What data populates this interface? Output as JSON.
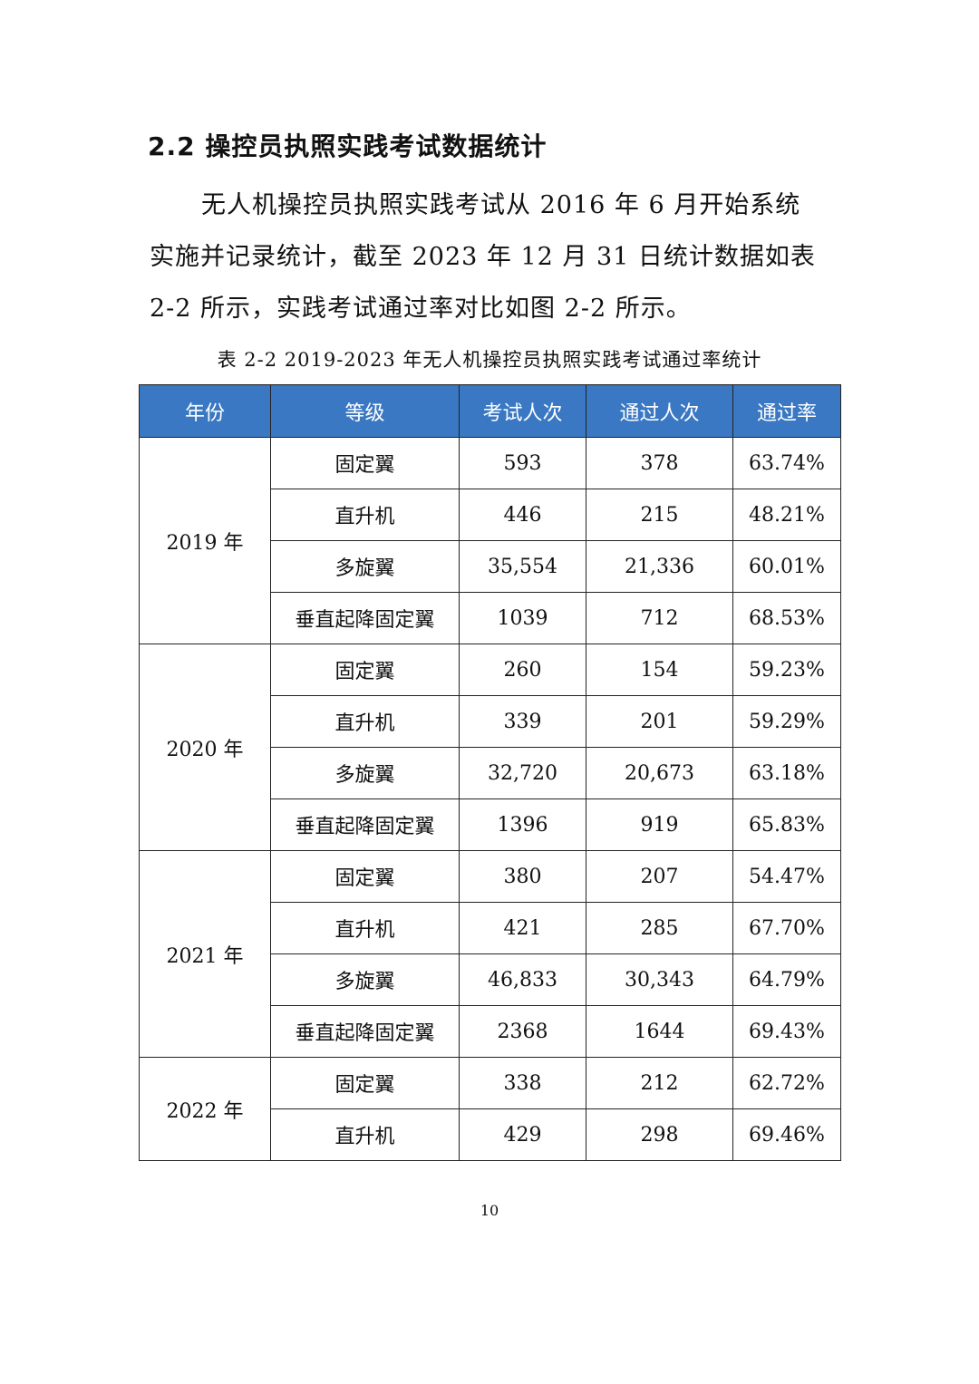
{
  "heading": "2.2 操控员执照实践考试数据统计",
  "paragraph": "无人机操控员执照实践考试从 2016 年 6 月开始系统实施并记录统计，截至 2023 年 12 月 31 日统计数据如表 2-2 所示，实践考试通过率对比如图 2-2 所示。",
  "table": {
    "caption": "表 2-2 2019-2023 年无人机操控员执照实践考试通过率统计",
    "header": [
      "年份",
      "等级",
      "考试人次",
      "通过人次",
      "通过率"
    ],
    "groups": [
      {
        "year": "2019 年",
        "rows": [
          [
            "固定翼",
            "593",
            "378",
            "63.74%"
          ],
          [
            "直升机",
            "446",
            "215",
            "48.21%"
          ],
          [
            "多旋翼",
            "35,554",
            "21,336",
            "60.01%"
          ],
          [
            "垂直起降固定翼",
            "1039",
            "712",
            "68.53%"
          ]
        ]
      },
      {
        "year": "2020 年",
        "rows": [
          [
            "固定翼",
            "260",
            "154",
            "59.23%"
          ],
          [
            "直升机",
            "339",
            "201",
            "59.29%"
          ],
          [
            "多旋翼",
            "32,720",
            "20,673",
            "63.18%"
          ],
          [
            "垂直起降固定翼",
            "1396",
            "919",
            "65.83%"
          ]
        ]
      },
      {
        "year": "2021 年",
        "rows": [
          [
            "固定翼",
            "380",
            "207",
            "54.47%"
          ],
          [
            "直升机",
            "421",
            "285",
            "67.70%"
          ],
          [
            "多旋翼",
            "46,833",
            "30,343",
            "64.79%"
          ],
          [
            "垂直起降固定翼",
            "2368",
            "1644",
            "69.43%"
          ]
        ]
      },
      {
        "year": "2022 年",
        "rows": [
          [
            "固定翼",
            "338",
            "212",
            "62.72%"
          ],
          [
            "直升机",
            "429",
            "298",
            "69.46%"
          ]
        ]
      }
    ]
  },
  "page_number": "10"
}
